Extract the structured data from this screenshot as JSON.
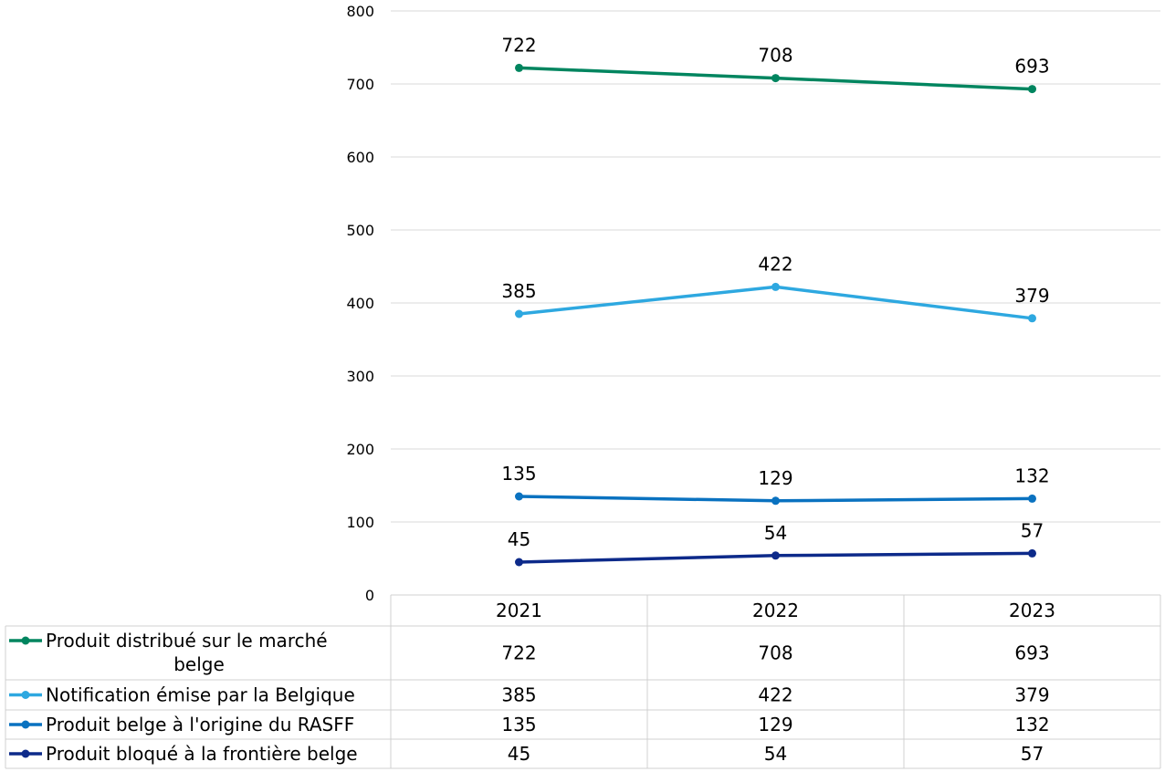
{
  "chart_data": {
    "type": "line",
    "categories": [
      "2021",
      "2022",
      "2023"
    ],
    "ylim": [
      0,
      800
    ],
    "yticks": [
      0,
      100,
      200,
      300,
      400,
      500,
      600,
      700,
      800
    ],
    "grid": true,
    "legend": "data-table",
    "series": [
      {
        "name": "Produit distribué sur le marché belge",
        "name_lines": [
          "Produit distribué sur le marché",
          "belge"
        ],
        "color": "#00855f",
        "values": [
          722,
          708,
          693
        ]
      },
      {
        "name": "Notification émise par la Belgique",
        "color": "#2ea8e0",
        "values": [
          385,
          422,
          379
        ]
      },
      {
        "name": "Produit belge à l'origine du RASFF",
        "color": "#0a72c0",
        "values": [
          135,
          129,
          132
        ]
      },
      {
        "name": "Produit bloqué à la frontière belge",
        "color": "#0d2a8a",
        "values": [
          45,
          54,
          57
        ]
      }
    ]
  }
}
